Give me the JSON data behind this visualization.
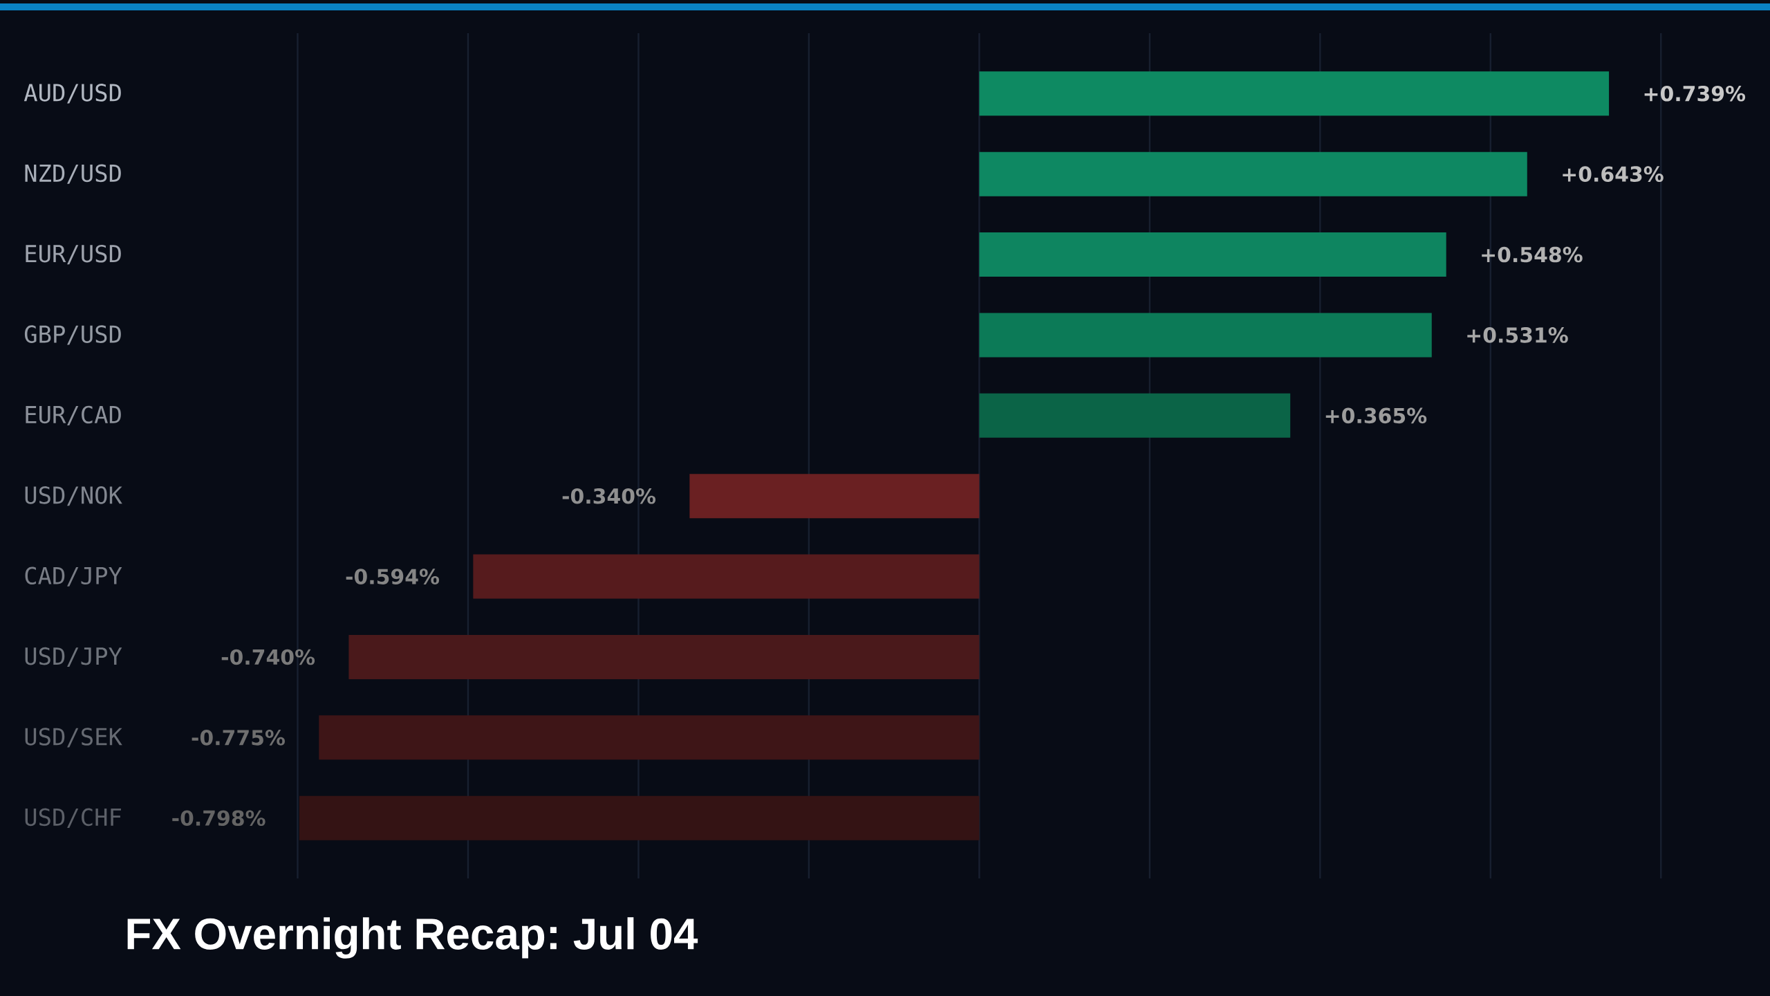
{
  "chart_data": {
    "type": "bar",
    "orientation": "horizontal",
    "title": "FX Overnight Recap: Jul 04",
    "categories": [
      "AUD/USD",
      "NZD/USD",
      "EUR/USD",
      "GBP/USD",
      "EUR/CAD",
      "USD/NOK",
      "CAD/JPY",
      "USD/JPY",
      "USD/SEK",
      "USD/CHF"
    ],
    "values": [
      0.739,
      0.643,
      0.548,
      0.531,
      0.365,
      -0.34,
      -0.594,
      -0.74,
      -0.775,
      -0.798
    ],
    "colors": [
      "#0e8a62",
      "#0e8862",
      "#0e8560",
      "#0c7a57",
      "#0b6447",
      "#6a2022",
      "#561b1d",
      "#4a191b",
      "#3e1517",
      "#341314"
    ],
    "value_labels": [
      "+0.739%",
      "+0.643%",
      "+0.548%",
      "+0.531%",
      "+0.365%",
      "-0.340%",
      "-0.594%",
      "-0.740%",
      "-0.775%",
      "-0.798%"
    ],
    "xticks": [
      -0.8,
      -0.6,
      -0.4,
      -0.2,
      0,
      0.2,
      0.4,
      0.6,
      0.8
    ],
    "grid": "x",
    "tick_labels": "y"
  }
}
